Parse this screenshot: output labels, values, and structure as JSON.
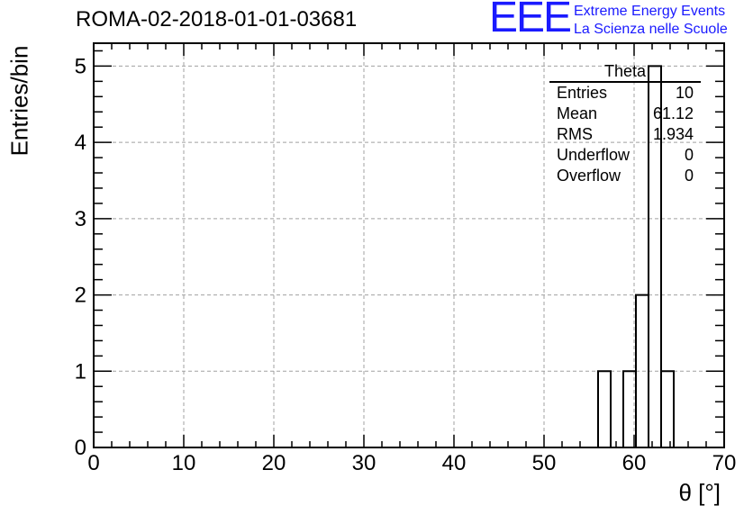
{
  "header": {
    "title": "ROMA-02-2018-01-01-03681",
    "logo_mark": "EEE",
    "logo_line1": "Extreme Energy Events",
    "logo_line2": "La Scienza nelle Scuole"
  },
  "stats_box": {
    "name": "Theta",
    "rows": [
      {
        "label": "Entries",
        "value": "10"
      },
      {
        "label": "Mean",
        "value": "61.12"
      },
      {
        "label": "RMS",
        "value": "1.934"
      },
      {
        "label": "Underflow",
        "value": "0"
      },
      {
        "label": "Overflow",
        "value": "0"
      }
    ]
  },
  "chart_data": {
    "type": "bar",
    "histogram": true,
    "xlabel": "θ [°]",
    "ylabel": "Entries/bin",
    "xlim": [
      0,
      70
    ],
    "ylim": [
      0,
      5.3
    ],
    "xticks": [
      0,
      10,
      20,
      30,
      40,
      50,
      60,
      70
    ],
    "yticks": [
      0,
      1,
      2,
      3,
      4,
      5
    ],
    "grid": true,
    "bins": [
      {
        "x0": 56.0,
        "x1": 57.4,
        "value": 1
      },
      {
        "x0": 58.8,
        "x1": 60.2,
        "value": 1
      },
      {
        "x0": 60.2,
        "x1": 61.6,
        "value": 2
      },
      {
        "x0": 61.6,
        "x1": 63.0,
        "value": 5
      },
      {
        "x0": 63.0,
        "x1": 64.4,
        "value": 1
      }
    ]
  }
}
